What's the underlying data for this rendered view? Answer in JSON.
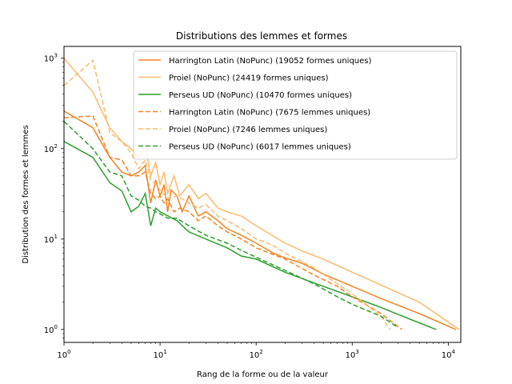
{
  "chart_data": {
    "type": "line",
    "title": "Distributions des lemmes et formes",
    "xlabel": "Rang de la forme ou de la valeur",
    "ylabel": "Distribution des formes et lemmes",
    "xscale": "log",
    "yscale": "log",
    "xlim": [
      1,
      13500
    ],
    "ylim": [
      0.72,
      1350
    ],
    "legend_position": "top-right",
    "grid": false,
    "x_ticks": [
      {
        "value": 1,
        "base": "10",
        "exp": "0"
      },
      {
        "value": 10,
        "base": "10",
        "exp": "1"
      },
      {
        "value": 100,
        "base": "10",
        "exp": "2"
      },
      {
        "value": 1000,
        "base": "10",
        "exp": "3"
      },
      {
        "value": 10000,
        "base": "10",
        "exp": "4"
      }
    ],
    "y_ticks": [
      {
        "value": 1,
        "base": "10",
        "exp": "0"
      },
      {
        "value": 10,
        "base": "10",
        "exp": "1"
      },
      {
        "value": 100,
        "base": "10",
        "exp": "2"
      },
      {
        "value": 1000,
        "base": "10",
        "exp": "3"
      }
    ],
    "series": [
      {
        "name": "Harrington Latin (NoPunc) (19052 formes uniques)",
        "color": "#f58220",
        "dash": "solid",
        "points": [
          [
            1,
            260
          ],
          [
            2,
            170
          ],
          [
            3,
            80
          ],
          [
            4,
            55
          ],
          [
            5,
            50
          ],
          [
            6,
            55
          ],
          [
            7,
            65
          ],
          [
            8,
            25
          ],
          [
            9,
            45
          ],
          [
            10,
            30
          ],
          [
            11,
            40
          ],
          [
            12,
            20
          ],
          [
            13,
            35
          ],
          [
            15,
            30
          ],
          [
            17,
            20
          ],
          [
            20,
            30
          ],
          [
            25,
            18
          ],
          [
            30,
            20
          ],
          [
            40,
            16
          ],
          [
            50,
            13
          ],
          [
            70,
            11
          ],
          [
            100,
            9
          ],
          [
            150,
            7
          ],
          [
            200,
            6.2
          ],
          [
            300,
            5.4
          ],
          [
            500,
            4.1
          ],
          [
            1000,
            3
          ],
          [
            2000,
            2.2
          ],
          [
            5000,
            1.5
          ],
          [
            12000,
            1
          ]
        ]
      },
      {
        "name": "Proiel (NoPunc) (24419 formes uniques)",
        "color": "#fdb96b",
        "dash": "solid",
        "points": [
          [
            1,
            1000
          ],
          [
            2,
            420
          ],
          [
            3,
            170
          ],
          [
            4,
            120
          ],
          [
            5,
            100
          ],
          [
            6,
            80
          ],
          [
            7,
            110
          ],
          [
            8,
            50
          ],
          [
            9,
            70
          ],
          [
            10,
            40
          ],
          [
            11,
            55
          ],
          [
            12,
            32
          ],
          [
            14,
            50
          ],
          [
            16,
            30
          ],
          [
            20,
            40
          ],
          [
            25,
            28
          ],
          [
            30,
            32
          ],
          [
            40,
            22
          ],
          [
            50,
            20
          ],
          [
            70,
            18
          ],
          [
            100,
            14
          ],
          [
            200,
            9
          ],
          [
            300,
            7.4
          ],
          [
            500,
            6
          ],
          [
            1000,
            4.3
          ],
          [
            2000,
            3.1
          ],
          [
            5000,
            2
          ],
          [
            13000,
            1
          ]
        ]
      },
      {
        "name": "Perseus UD (NoPunc) (10470 formes uniques)",
        "color": "#2ca02c",
        "dash": "solid",
        "points": [
          [
            1,
            120
          ],
          [
            2,
            80
          ],
          [
            3,
            42
          ],
          [
            4,
            34
          ],
          [
            5,
            20
          ],
          [
            6,
            23
          ],
          [
            7,
            32
          ],
          [
            8,
            14
          ],
          [
            9,
            22
          ],
          [
            10,
            20
          ],
          [
            15,
            16
          ],
          [
            20,
            12
          ],
          [
            30,
            10
          ],
          [
            50,
            8
          ],
          [
            70,
            6.5
          ],
          [
            100,
            6
          ],
          [
            200,
            4.3
          ],
          [
            500,
            3
          ],
          [
            1000,
            2.3
          ],
          [
            2000,
            1.75
          ],
          [
            4000,
            1.3
          ],
          [
            7500,
            1
          ]
        ]
      },
      {
        "name": "Harrington Latin (NoPunc) (7675 lemmes uniques)",
        "color": "#f58220",
        "dash": "dashed",
        "points": [
          [
            1,
            220
          ],
          [
            2,
            230
          ],
          [
            3,
            80
          ],
          [
            4,
            75
          ],
          [
            5,
            50
          ],
          [
            6,
            50
          ],
          [
            7,
            55
          ],
          [
            8,
            32
          ],
          [
            9,
            28
          ],
          [
            10,
            30
          ],
          [
            11,
            25
          ],
          [
            12,
            28
          ],
          [
            14,
            20
          ],
          [
            16,
            22
          ],
          [
            20,
            20
          ],
          [
            25,
            16
          ],
          [
            30,
            18
          ],
          [
            40,
            14
          ],
          [
            50,
            12
          ],
          [
            70,
            10
          ],
          [
            100,
            8
          ],
          [
            200,
            6
          ],
          [
            400,
            4
          ],
          [
            700,
            3
          ],
          [
            1000,
            2.3
          ],
          [
            2000,
            1.5
          ],
          [
            3300,
            1
          ]
        ]
      },
      {
        "name": "Proiel (NoPunc) (7246 lemmes uniques)",
        "color": "#fdb96b",
        "dash": "dashed",
        "points": [
          [
            1,
            500
          ],
          [
            2,
            950
          ],
          [
            3,
            150
          ],
          [
            4,
            120
          ],
          [
            5,
            90
          ],
          [
            6,
            60
          ],
          [
            7,
            75
          ],
          [
            8,
            45
          ],
          [
            9,
            40
          ],
          [
            10,
            35
          ],
          [
            12,
            28
          ],
          [
            15,
            30
          ],
          [
            20,
            25
          ],
          [
            25,
            22
          ],
          [
            30,
            24
          ],
          [
            40,
            18
          ],
          [
            50,
            16
          ],
          [
            70,
            13
          ],
          [
            100,
            10
          ],
          [
            150,
            8.5
          ],
          [
            200,
            7
          ],
          [
            400,
            4.8
          ],
          [
            700,
            3.2
          ],
          [
            1000,
            2.5
          ],
          [
            2000,
            1.4
          ],
          [
            2500,
            1
          ]
        ]
      },
      {
        "name": "Perseus UD (NoPunc) (6017 lemmes uniques)",
        "color": "#2ca02c",
        "dash": "dashed",
        "points": [
          [
            1,
            200
          ],
          [
            2,
            100
          ],
          [
            3,
            55
          ],
          [
            4,
            50
          ],
          [
            5,
            30
          ],
          [
            6,
            27
          ],
          [
            7,
            23
          ],
          [
            8,
            22
          ],
          [
            9,
            20
          ],
          [
            10,
            19
          ],
          [
            12,
            17
          ],
          [
            15,
            17
          ],
          [
            20,
            14
          ],
          [
            30,
            11
          ],
          [
            50,
            9
          ],
          [
            70,
            7.5
          ],
          [
            100,
            6.3
          ],
          [
            200,
            4.5
          ],
          [
            400,
            3.2
          ],
          [
            700,
            2.3
          ],
          [
            1000,
            1.9
          ],
          [
            2000,
            1.4
          ],
          [
            3000,
            1.05
          ]
        ]
      }
    ]
  }
}
